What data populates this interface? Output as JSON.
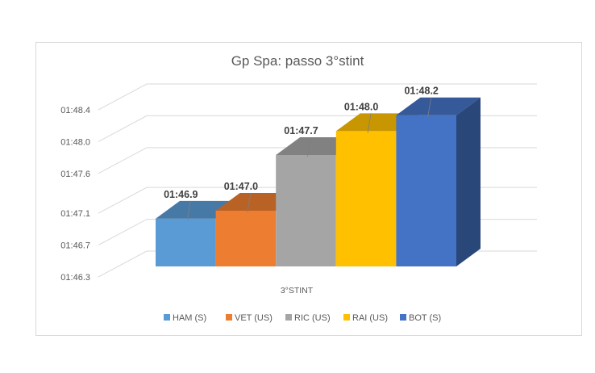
{
  "chart_data": {
    "type": "bar",
    "three_d": true,
    "title": "Gp Spa: passo 3°stint",
    "categories": [
      "3°STINT"
    ],
    "y_ticks": [
      "01:46.3",
      "01:46.7",
      "01:47.1",
      "01:47.6",
      "01:48.0",
      "01:48.4"
    ],
    "y_tick_seconds": [
      106.3,
      106.7,
      107.1,
      107.6,
      108.0,
      108.4
    ],
    "ylim_seconds": [
      106.3,
      108.4
    ],
    "grid": true,
    "legend_position": "bottom",
    "series": [
      {
        "name": "HAM (S)",
        "value": "01:46.9",
        "seconds": 106.9,
        "color": "#5b9bd5"
      },
      {
        "name": "VET (US)",
        "value": "01:47.0",
        "seconds": 107.0,
        "color": "#ed7d31"
      },
      {
        "name": "RIC (US)",
        "value": "01:47.7",
        "seconds": 107.7,
        "color": "#a5a5a5"
      },
      {
        "name": "RAI (US)",
        "value": "01:48.0",
        "seconds": 108.0,
        "color": "#ffc000"
      },
      {
        "name": "BOT (S)",
        "value": "01:48.2",
        "seconds": 108.2,
        "color": "#4472c4"
      }
    ]
  }
}
